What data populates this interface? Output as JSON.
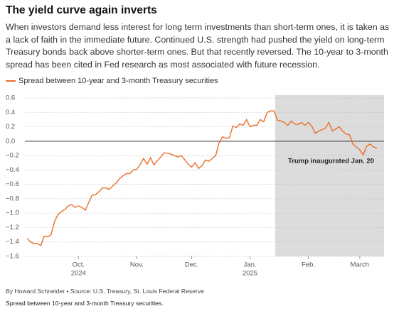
{
  "chart_data": {
    "type": "line",
    "title": "The yield curve again inverts",
    "subtitle": "When investors demand less interest for long term investments than short-term ones, it is taken as a lack of faith in the immediate future. Continued U.S. strength had pushed the yield on long-term Treasury bonds back above shorter-term ones. But that recently reversed. The 10-year to 3-month spread has been cited in Fed research as most associated with future recession.",
    "source": "By Howard Schneider • Source: U.S. Treasury, St. Louis Federal Reserve",
    "note": "Spread between 10-year and 3-month Treasury securities.",
    "annotation": "Trump inaugurated Jan. 20",
    "categories": [
      null,
      null,
      null,
      null,
      null,
      null,
      null,
      null,
      null,
      null,
      null,
      null,
      null,
      null,
      null,
      "Oct.",
      null,
      null,
      null,
      null,
      null,
      null,
      null,
      null,
      null,
      null,
      null,
      null,
      null,
      null,
      null,
      null,
      "Nov.",
      null,
      null,
      null,
      null,
      null,
      null,
      null,
      null,
      null,
      null,
      null,
      null,
      null,
      null,
      null,
      "Dec.",
      null,
      null,
      null,
      null,
      null,
      null,
      null,
      null,
      null,
      null,
      null,
      null,
      null,
      null,
      null,
      null,
      "Jan.",
      null,
      null,
      null,
      null,
      null,
      null,
      null,
      null,
      null,
      null,
      null,
      null,
      null,
      null,
      null,
      null,
      "Feb.",
      null,
      null,
      null,
      null,
      null,
      null,
      null,
      null,
      null,
      null,
      null,
      null,
      null,
      null,
      "March",
      null,
      null,
      null,
      null,
      null
    ],
    "x_years": [
      {
        "at": "Oct.",
        "label": "2024"
      },
      {
        "at": "Jan.",
        "label": "2025"
      }
    ],
    "series": [
      {
        "name": "Spread between 10-year and 3-month Treasury securities",
        "color": "#e8702a",
        "values": [
          -1.35,
          -1.4,
          -1.42,
          -1.42,
          -1.45,
          -1.32,
          -1.33,
          -1.3,
          -1.12,
          -1.02,
          -0.98,
          -0.95,
          -0.9,
          -0.88,
          -0.92,
          -0.9,
          -0.92,
          -0.96,
          -0.85,
          -0.75,
          -0.74,
          -0.7,
          -0.65,
          -0.65,
          -0.67,
          -0.62,
          -0.58,
          -0.52,
          -0.48,
          -0.45,
          -0.45,
          -0.4,
          -0.39,
          -0.32,
          -0.24,
          -0.32,
          -0.23,
          -0.33,
          -0.27,
          -0.22,
          -0.16,
          -0.17,
          -0.18,
          -0.2,
          -0.22,
          -0.2,
          -0.26,
          -0.32,
          -0.36,
          -0.3,
          -0.38,
          -0.34,
          -0.26,
          -0.28,
          -0.24,
          -0.2,
          -0.02,
          0.06,
          0.04,
          0.05,
          0.21,
          0.19,
          0.24,
          0.22,
          0.3,
          0.2,
          0.22,
          0.22,
          0.3,
          0.27,
          0.4,
          0.42,
          0.42,
          0.29,
          0.28,
          0.26,
          0.22,
          0.28,
          0.24,
          0.23,
          0.26,
          0.22,
          0.26,
          0.21,
          0.11,
          0.14,
          0.16,
          0.18,
          0.26,
          0.14,
          0.17,
          0.2,
          0.14,
          0.1,
          0.09,
          -0.04,
          -0.08,
          -0.12,
          -0.19,
          -0.07,
          -0.04,
          -0.08,
          -0.1
        ]
      }
    ],
    "ylim": [
      -1.6,
      0.6
    ],
    "yticks": [
      0.6,
      0.4,
      0.2,
      {
        "value": 0,
        "label": "0.0"
      },
      {
        "value": -0.2,
        "label": "−0.2"
      },
      {
        "value": -0.4,
        "label": "−0.4"
      },
      {
        "value": -0.6,
        "label": "−0.6"
      },
      {
        "value": -0.8,
        "label": "−0.8"
      },
      {
        "value": -1.0,
        "label": "−1.0"
      },
      {
        "value": -1.2,
        "label": "−1.2"
      },
      {
        "value": -1.4,
        "label": "−1.4"
      },
      {
        "value": -1.6,
        "label": "−1.6"
      }
    ],
    "grid": true
  }
}
